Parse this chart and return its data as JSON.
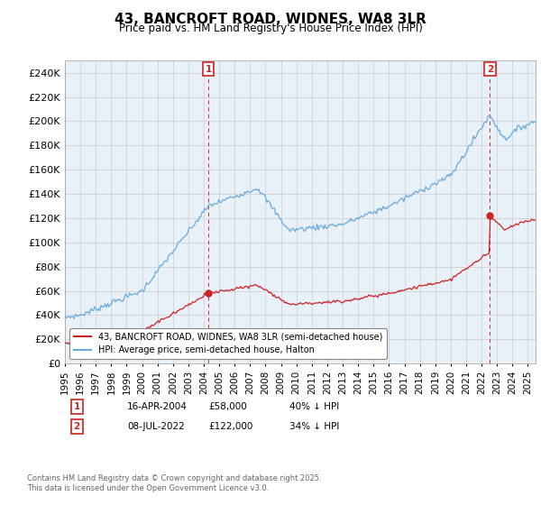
{
  "title": "43, BANCROFT ROAD, WIDNES, WA8 3LR",
  "subtitle": "Price paid vs. HM Land Registry's House Price Index (HPI)",
  "ylabel_ticks": [
    "£0",
    "£20K",
    "£40K",
    "£60K",
    "£80K",
    "£100K",
    "£120K",
    "£140K",
    "£160K",
    "£180K",
    "£200K",
    "£220K",
    "£240K"
  ],
  "ylim": [
    0,
    250000
  ],
  "ytick_values": [
    0,
    20000,
    40000,
    60000,
    80000,
    100000,
    120000,
    140000,
    160000,
    180000,
    200000,
    220000,
    240000
  ],
  "hpi_color": "#6aabde",
  "price_color": "#cc2222",
  "chart_bg": "#e8f0f8",
  "marker1_date": "16-APR-2004",
  "marker1_price": 58000,
  "marker1_label": "40% ↓ HPI",
  "marker2_date": "08-JUL-2022",
  "marker2_price": 122000,
  "marker2_label": "34% ↓ HPI",
  "legend_line1": "43, BANCROFT ROAD, WIDNES, WA8 3LR (semi-detached house)",
  "legend_line2": "HPI: Average price, semi-detached house, Halton",
  "footer": "Contains HM Land Registry data © Crown copyright and database right 2025.\nThis data is licensed under the Open Government Licence v3.0.",
  "background_color": "#ffffff",
  "grid_color": "#cccccc",
  "sale1_x": 2004.29,
  "sale2_x": 2022.54
}
